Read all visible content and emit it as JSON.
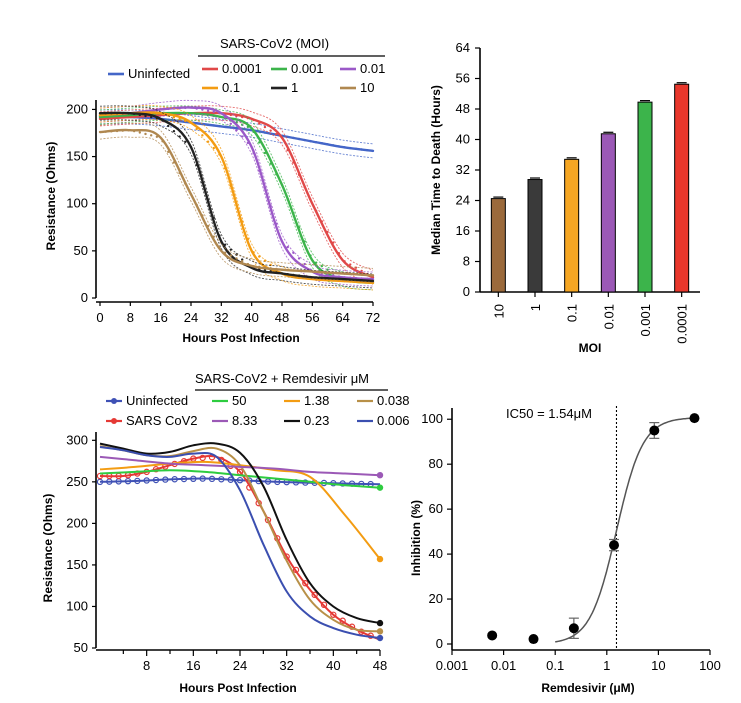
{
  "chart_data": [
    {
      "id": "A",
      "type": "line",
      "xlabel": "Hours Post Infection",
      "ylabel": "Resistance (Ohms)",
      "xlim": [
        0,
        72
      ],
      "ylim": [
        0,
        210
      ],
      "xticks": [
        0,
        8,
        16,
        24,
        32,
        40,
        48,
        56,
        64,
        72
      ],
      "yticks": [
        0,
        50,
        100,
        150,
        200
      ],
      "legend_group_title": "SARS-CoV2 (MOI)",
      "series": [
        {
          "name": "Uninfected",
          "color": "#4466c8",
          "x": [
            0,
            8,
            16,
            24,
            32,
            40,
            48,
            56,
            64,
            72
          ],
          "y": [
            192,
            192,
            190,
            186,
            182,
            178,
            172,
            166,
            160,
            156
          ]
        },
        {
          "name": "0.0001",
          "color": "#e04848",
          "x": [
            0,
            8,
            16,
            24,
            32,
            40,
            48,
            56,
            64,
            72
          ],
          "y": [
            190,
            192,
            194,
            196,
            196,
            190,
            170,
            100,
            40,
            22
          ]
        },
        {
          "name": "0.001",
          "color": "#3cb44b",
          "x": [
            0,
            8,
            16,
            24,
            32,
            40,
            48,
            56,
            64,
            72
          ],
          "y": [
            192,
            194,
            196,
            196,
            192,
            180,
            120,
            40,
            20,
            16
          ]
        },
        {
          "name": "0.01",
          "color": "#9b59c8",
          "x": [
            0,
            8,
            16,
            24,
            32,
            40,
            48,
            56,
            64,
            72
          ],
          "y": [
            194,
            196,
            200,
            202,
            196,
            160,
            60,
            28,
            22,
            20
          ]
        },
        {
          "name": "0.1",
          "color": "#f39c12",
          "x": [
            0,
            8,
            16,
            24,
            32,
            40,
            48,
            56,
            64,
            72
          ],
          "y": [
            194,
            196,
            196,
            186,
            150,
            50,
            26,
            20,
            18,
            16
          ]
        },
        {
          "name": "1",
          "color": "#222222",
          "x": [
            0,
            8,
            16,
            24,
            32,
            40,
            48,
            56,
            64,
            72
          ],
          "y": [
            196,
            196,
            190,
            160,
            60,
            32,
            26,
            22,
            20,
            18
          ]
        },
        {
          "name": "10",
          "color": "#b08850",
          "x": [
            0,
            8,
            16,
            24,
            32,
            40,
            48,
            56,
            64,
            72
          ],
          "y": [
            176,
            178,
            170,
            110,
            50,
            34,
            30,
            28,
            26,
            24
          ]
        }
      ]
    },
    {
      "id": "B",
      "type": "bar",
      "xlabel": "MOI",
      "ylabel": "Median Time to Death (Hours)",
      "ylim": [
        0,
        64
      ],
      "yticks": [
        0,
        8,
        16,
        24,
        32,
        40,
        48,
        56,
        64
      ],
      "categories": [
        "10",
        "1",
        "0.1",
        "0.01",
        "0.001",
        "0.0001"
      ],
      "values": [
        24.5,
        29.5,
        34.8,
        41.5,
        49.8,
        54.5
      ],
      "colors": [
        "#9b6a3c",
        "#3a3a3a",
        "#f5a623",
        "#9b59b6",
        "#3cb44b",
        "#e8372c"
      ]
    },
    {
      "id": "C",
      "type": "line",
      "xlabel": "Hours Post Infection",
      "ylabel": "Resistance (Ohms)",
      "xlim": [
        0,
        48
      ],
      "ylim": [
        50,
        310
      ],
      "xticks": [
        8,
        16,
        24,
        32,
        40,
        48
      ],
      "yticks": [
        50,
        100,
        150,
        200,
        250,
        300
      ],
      "legend_group_title": "SARS-CoV2 + Remdesivir μM",
      "series": [
        {
          "name": "Uninfected",
          "color": "#3f51b5",
          "marker": "circle",
          "x": [
            0,
            6,
            12,
            18,
            24,
            30,
            36,
            42,
            48
          ],
          "y": [
            250,
            251,
            253,
            254,
            252,
            250,
            249,
            248,
            247
          ]
        },
        {
          "name": "SARS CoV2",
          "color": "#e53935",
          "marker": "circle",
          "x": [
            0,
            4,
            8,
            12,
            16,
            20,
            24,
            28,
            32,
            36,
            40,
            44,
            48
          ],
          "y": [
            257,
            257,
            262,
            270,
            278,
            280,
            262,
            215,
            160,
            120,
            90,
            72,
            60
          ]
        },
        {
          "name": "50",
          "color": "#2ecc40",
          "x": [
            0,
            6,
            12,
            18,
            24,
            30,
            36,
            42,
            48
          ],
          "y": [
            260,
            262,
            264,
            262,
            258,
            254,
            250,
            246,
            243
          ]
        },
        {
          "name": "1.38",
          "color": "#f39c12",
          "x": [
            0,
            6,
            12,
            18,
            24,
            30,
            36,
            42,
            48
          ],
          "y": [
            265,
            268,
            272,
            274,
            270,
            264,
            256,
            210,
            157
          ]
        },
        {
          "name": "0.038",
          "color": "#b89048",
          "x": [
            0,
            4,
            8,
            12,
            16,
            20,
            24,
            28,
            32,
            36,
            40,
            44,
            48
          ],
          "y": [
            293,
            288,
            282,
            281,
            287,
            290,
            270,
            215,
            155,
            108,
            84,
            72,
            70
          ]
        },
        {
          "name": "8.33",
          "color": "#9b59b6",
          "x": [
            0,
            6,
            12,
            18,
            24,
            30,
            36,
            42,
            48
          ],
          "y": [
            280,
            276,
            272,
            270,
            268,
            266,
            262,
            260,
            258
          ]
        },
        {
          "name": "0.23",
          "color": "#111111",
          "x": [
            0,
            4,
            8,
            12,
            16,
            20,
            24,
            28,
            32,
            36,
            40,
            44,
            48
          ],
          "y": [
            296,
            290,
            284,
            286,
            294,
            296,
            285,
            245,
            180,
            128,
            100,
            86,
            80
          ]
        },
        {
          "name": "0.006",
          "color": "#3b4fb0",
          "x": [
            0,
            4,
            8,
            12,
            16,
            20,
            24,
            28,
            32,
            36,
            40,
            44,
            48
          ],
          "y": [
            292,
            288,
            282,
            280,
            284,
            280,
            240,
            175,
            118,
            88,
            74,
            66,
            62
          ]
        }
      ]
    },
    {
      "id": "D",
      "type": "scatter",
      "xlabel": "Remdesivir (μM)",
      "ylabel": "Inhibition (%)",
      "xscale": "log",
      "xlim": [
        0.001,
        100
      ],
      "ylim": [
        0,
        105
      ],
      "xticks": [
        0.001,
        0.01,
        0.1,
        1,
        10,
        100
      ],
      "xticklabels": [
        "0.001",
        "0.01",
        "0.1",
        "1",
        "10",
        "100"
      ],
      "yticks": [
        0,
        20,
        40,
        60,
        80,
        100
      ],
      "annotation": "IC50 = 1.54μM",
      "ic50": 1.54,
      "points": [
        {
          "x": 0.006,
          "y": 3.8,
          "err": 0
        },
        {
          "x": 0.038,
          "y": 2.2,
          "err": 0
        },
        {
          "x": 0.23,
          "y": 7,
          "err": 4.5
        },
        {
          "x": 1.38,
          "y": 44,
          "err": 2.5
        },
        {
          "x": 8.33,
          "y": 95,
          "err": 3.5
        },
        {
          "x": 50,
          "y": 100.5,
          "err": 0
        }
      ],
      "fit": {
        "model": "hill",
        "top": 100.8,
        "bottom": 0,
        "ec50": 1.54,
        "hill": 1.7
      }
    }
  ]
}
